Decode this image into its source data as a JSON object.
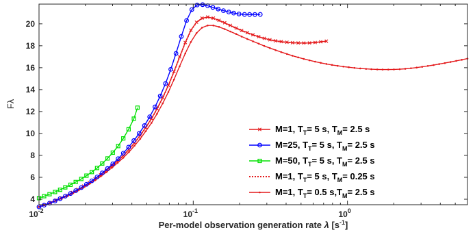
{
  "chart_data": {
    "type": "line",
    "title": "",
    "xscale": "log",
    "xlim": [
      0.01,
      6
    ],
    "ylim": [
      3.5,
      21.8
    ],
    "xticks": [
      {
        "value": 0.01,
        "base": "10",
        "exp": "-2"
      },
      {
        "value": 0.1,
        "base": "10",
        "exp": "-1"
      },
      {
        "value": 1,
        "base": "10",
        "exp": "0"
      }
    ],
    "yticks": [
      4,
      6,
      8,
      10,
      12,
      14,
      16,
      18,
      20
    ],
    "xlabel": {
      "text": "Per-model observation generation rate ",
      "sym": "λ",
      "unit_open": " [s",
      "unit_exp": "-1",
      "unit_close": "]"
    },
    "ylabel": {
      "main": "F",
      "sub": "λ"
    },
    "legend_position": "right",
    "series": [
      {
        "name": {
          "m": "M=1,  T",
          "sub1": "T",
          "mid": "= 5 s,  T",
          "sub2": "M",
          "end": "= 2.5 s"
        },
        "color": "#e41a1c",
        "marker": "x",
        "dash": "solid",
        "x": [
          0.01,
          0.0108,
          0.0118,
          0.0128,
          0.0139,
          0.0152,
          0.0165,
          0.0179,
          0.0195,
          0.0212,
          0.0231,
          0.0251,
          0.0273,
          0.0297,
          0.0323,
          0.0352,
          0.0383,
          0.0416,
          0.0453,
          0.0492,
          0.0536,
          0.0583,
          0.0634,
          0.069,
          0.075,
          0.0816,
          0.0888,
          0.0966,
          0.105,
          0.114,
          0.124,
          0.135,
          0.147,
          0.16,
          0.174,
          0.19,
          0.206,
          0.224,
          0.244,
          0.266,
          0.289,
          0.314,
          0.342,
          0.372,
          0.405,
          0.44,
          0.479,
          0.521,
          0.567,
          0.617,
          0.671,
          0.73
        ],
        "y": [
          3.3,
          3.48,
          3.68,
          3.9,
          4.12,
          4.36,
          4.62,
          4.9,
          5.2,
          5.52,
          5.86,
          6.23,
          6.62,
          7.04,
          7.5,
          8.0,
          8.55,
          9.15,
          9.82,
          10.55,
          11.36,
          12.26,
          13.27,
          14.4,
          15.65,
          16.98,
          18.3,
          19.42,
          20.15,
          20.52,
          20.62,
          20.52,
          20.32,
          20.1,
          19.86,
          19.62,
          19.4,
          19.2,
          19.0,
          18.83,
          18.68,
          18.55,
          18.45,
          18.38,
          18.32,
          18.28,
          18.26,
          18.25,
          18.26,
          18.3,
          18.36,
          18.42
        ]
      },
      {
        "name": {
          "m": "M=25, T",
          "sub1": "T",
          "mid": "= 5 s,  T",
          "sub2": "M",
          "end": "= 2.5 s"
        },
        "color": "#0000ff",
        "marker": "o",
        "dash": "solid",
        "x": [
          0.01,
          0.0108,
          0.0117,
          0.0127,
          0.0137,
          0.0148,
          0.016,
          0.0173,
          0.0188,
          0.0203,
          0.022,
          0.0238,
          0.0257,
          0.0278,
          0.0301,
          0.0326,
          0.0352,
          0.0381,
          0.0412,
          0.0446,
          0.0483,
          0.0522,
          0.0565,
          0.0611,
          0.0661,
          0.0715,
          0.0773,
          0.0837,
          0.0905,
          0.0979,
          0.106,
          0.115,
          0.124,
          0.134,
          0.145,
          0.157,
          0.17,
          0.183,
          0.198,
          0.215,
          0.232,
          0.251,
          0.272
        ],
        "y": [
          3.3,
          3.46,
          3.64,
          3.84,
          4.05,
          4.28,
          4.52,
          4.78,
          5.06,
          5.36,
          5.68,
          6.03,
          6.4,
          6.8,
          7.23,
          7.7,
          8.2,
          8.75,
          9.35,
          10.0,
          10.72,
          11.52,
          12.42,
          13.42,
          14.55,
          15.85,
          17.3,
          18.85,
          20.3,
          21.3,
          21.72,
          21.75,
          21.65,
          21.5,
          21.35,
          21.2,
          21.08,
          20.98,
          20.9,
          20.86,
          20.85,
          20.85,
          20.86
        ]
      },
      {
        "name": {
          "m": "M=50, T",
          "sub1": "T",
          "mid": "= 5 s,  T",
          "sub2": "M",
          "end": "= 2.5 s"
        },
        "color": "#00e000",
        "marker": "s",
        "dash": "solid",
        "x": [
          0.01,
          0.0108,
          0.0117,
          0.0127,
          0.0137,
          0.0148,
          0.016,
          0.0173,
          0.0188,
          0.0203,
          0.022,
          0.0238,
          0.0257,
          0.0278,
          0.0301,
          0.0326,
          0.0352,
          0.0381,
          0.0412,
          0.0435
        ],
        "y": [
          4.1,
          4.28,
          4.46,
          4.66,
          4.86,
          5.08,
          5.32,
          5.57,
          5.85,
          6.15,
          6.48,
          6.85,
          7.26,
          7.72,
          8.25,
          8.85,
          9.55,
          10.38,
          11.35,
          12.35
        ]
      },
      {
        "name": {
          "m": "M=1,   T",
          "sub1": "T",
          "mid": "= 5 s,  T",
          "sub2": "M",
          "end": "= 0.25 s"
        },
        "color": "#e41a1c",
        "marker": "none",
        "dash": "dotted",
        "x": [
          0.01,
          0.0108,
          0.0118,
          0.0128,
          0.0139,
          0.0152,
          0.0165,
          0.0179,
          0.0195,
          0.0212,
          0.0231,
          0.0251,
          0.0273,
          0.0297,
          0.0323,
          0.0352,
          0.0383,
          0.0416,
          0.0453,
          0.0492,
          0.0536,
          0.0583,
          0.0634,
          0.069,
          0.075,
          0.0816,
          0.0888,
          0.0966,
          0.105,
          0.114,
          0.124,
          0.135,
          0.147,
          0.16,
          0.174,
          0.19,
          0.206,
          0.224,
          0.244,
          0.266,
          0.289,
          0.314,
          0.342,
          0.372,
          0.405,
          0.44,
          0.479,
          0.521,
          0.567,
          0.617,
          0.671,
          0.73
        ],
        "y": [
          3.3,
          3.47,
          3.66,
          3.87,
          4.09,
          4.33,
          4.59,
          4.87,
          5.17,
          5.49,
          5.83,
          6.2,
          6.59,
          7.01,
          7.47,
          7.97,
          8.52,
          9.12,
          9.79,
          10.52,
          11.33,
          12.23,
          13.24,
          14.37,
          15.62,
          16.95,
          18.27,
          19.39,
          20.12,
          20.48,
          20.58,
          20.48,
          20.28,
          20.06,
          19.82,
          19.58,
          19.36,
          19.16,
          18.97,
          18.8,
          18.65,
          18.53,
          18.43,
          18.36,
          18.3,
          18.27,
          18.25,
          18.24,
          18.25,
          18.29,
          18.35,
          18.41
        ]
      },
      {
        "name": {
          "m": "M=1,   T",
          "sub1": "T",
          "mid": "= 0.5 s,T",
          "sub2": "M",
          "end": "= 2.5 s"
        },
        "color": "#e41a1c",
        "marker": "dot",
        "dash": "solid",
        "x": [
          0.01,
          0.0108,
          0.0118,
          0.0128,
          0.0139,
          0.0152,
          0.0165,
          0.0179,
          0.0195,
          0.0212,
          0.0231,
          0.0251,
          0.0273,
          0.0297,
          0.0323,
          0.0352,
          0.0383,
          0.0416,
          0.0453,
          0.0492,
          0.0536,
          0.0583,
          0.0634,
          0.069,
          0.075,
          0.0816,
          0.0888,
          0.0966,
          0.105,
          0.114,
          0.124,
          0.135,
          0.147,
          0.16,
          0.174,
          0.19,
          0.206,
          0.224,
          0.244,
          0.266,
          0.289,
          0.314,
          0.342,
          0.372,
          0.405,
          0.44,
          0.479,
          0.521,
          0.567,
          0.617,
          0.671,
          0.73,
          0.794,
          0.864,
          0.94,
          1.02,
          1.11,
          1.21,
          1.32,
          1.43,
          1.56,
          1.69,
          1.84,
          2.0,
          2.18,
          2.37,
          2.58,
          2.81,
          3.05,
          3.32,
          3.62,
          3.93,
          4.28,
          4.66,
          5.07,
          5.51,
          6.0
        ],
        "y": [
          3.3,
          3.46,
          3.64,
          3.84,
          4.05,
          4.28,
          4.53,
          4.8,
          5.09,
          5.4,
          5.73,
          6.08,
          6.46,
          6.87,
          7.31,
          7.79,
          8.31,
          8.88,
          9.51,
          10.2,
          10.96,
          11.8,
          12.74,
          13.78,
          14.92,
          16.12,
          17.3,
          18.35,
          19.15,
          19.65,
          19.85,
          19.85,
          19.72,
          19.52,
          19.3,
          19.07,
          18.84,
          18.62,
          18.4,
          18.19,
          17.98,
          17.79,
          17.6,
          17.42,
          17.25,
          17.09,
          16.94,
          16.8,
          16.67,
          16.55,
          16.44,
          16.34,
          16.25,
          16.17,
          16.1,
          16.04,
          15.98,
          15.93,
          15.89,
          15.86,
          15.84,
          15.83,
          15.83,
          15.84,
          15.86,
          15.9,
          15.95,
          16.01,
          16.08,
          16.16,
          16.24,
          16.33,
          16.42,
          16.52,
          16.62,
          16.72,
          16.83
        ]
      }
    ]
  }
}
